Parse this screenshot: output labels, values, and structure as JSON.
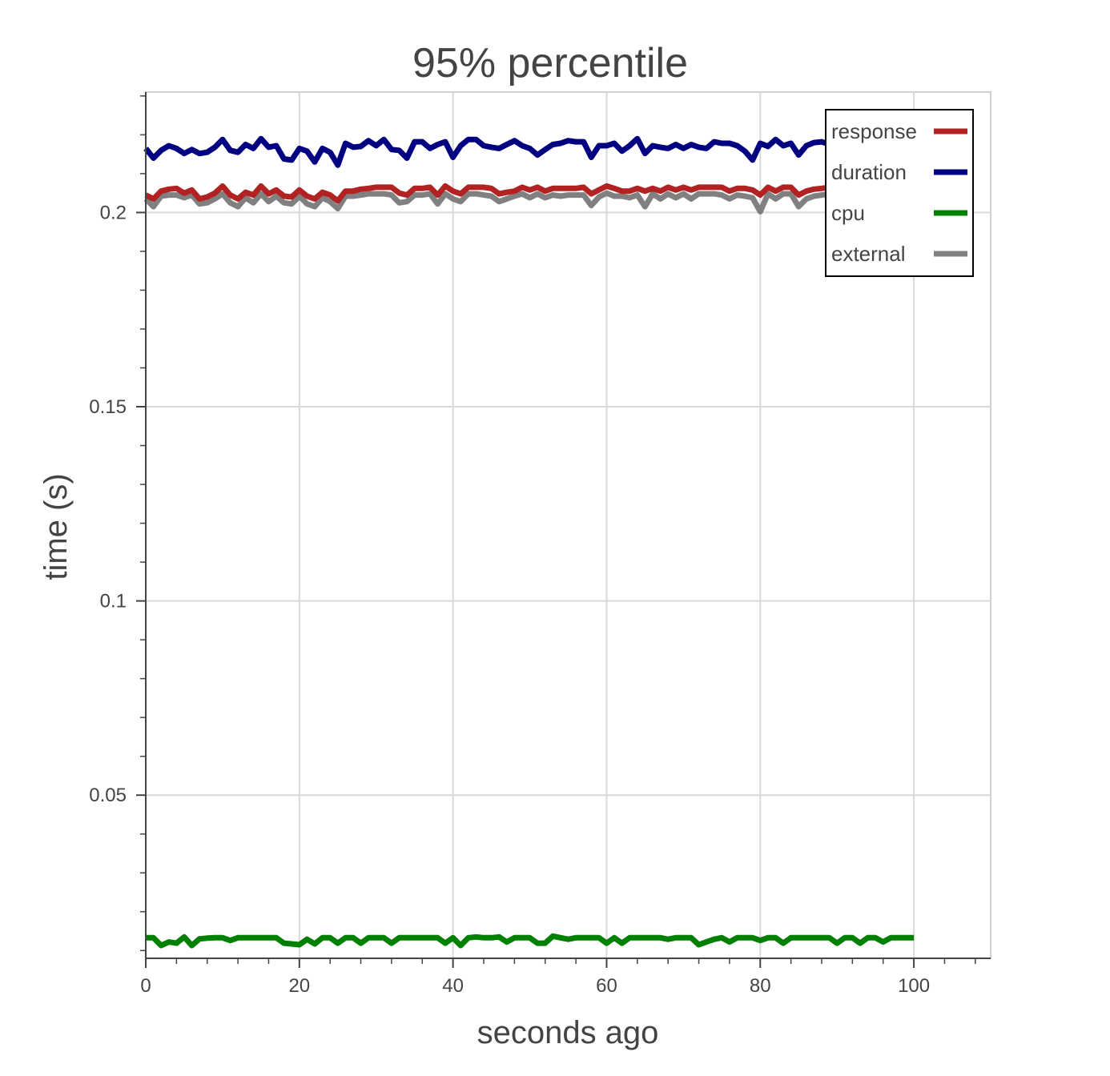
{
  "chart_data": {
    "type": "line",
    "title": "95% percentile",
    "xlabel": "seconds ago",
    "ylabel": "time (s)",
    "xlim": [
      0,
      110
    ],
    "ylim": [
      0.008,
      0.231
    ],
    "xticks": [
      0,
      20,
      40,
      60,
      80,
      100
    ],
    "xtick_labels": [
      "0",
      "20",
      "40",
      "60",
      "80",
      "100"
    ],
    "yticks": [
      0.05,
      0.1,
      0.15,
      0.2
    ],
    "ytick_labels": [
      "0.05",
      "0.1",
      "0.15",
      "0.2"
    ],
    "grid": true,
    "legend_position": "top-right",
    "series": [
      {
        "name": "response",
        "color": "#b22222",
        "x": [
          0,
          1,
          2,
          3,
          4,
          5,
          6,
          7,
          8,
          9,
          10,
          11,
          12,
          13,
          14,
          15,
          16,
          17,
          18,
          19,
          20,
          21,
          22,
          23,
          24,
          25,
          26,
          27,
          28,
          29,
          30,
          31,
          32,
          33,
          34,
          35,
          36,
          37,
          38,
          39,
          40,
          41,
          42,
          43,
          44,
          45,
          46,
          47,
          48,
          49,
          50,
          51,
          52,
          53,
          54,
          55,
          56,
          57,
          58,
          59,
          60,
          61,
          62,
          63,
          64,
          65,
          66,
          67,
          68,
          69,
          70,
          71,
          72,
          73,
          74,
          75,
          76,
          77,
          78,
          79,
          80,
          81,
          82,
          83,
          84,
          85,
          86,
          87,
          88,
          89,
          90,
          91,
          92,
          93,
          94,
          95,
          96,
          97,
          98,
          99,
          100
        ],
        "values": [
          0.2045,
          0.2035,
          0.2055,
          0.206,
          0.2062,
          0.205,
          0.2058,
          0.2035,
          0.204,
          0.205,
          0.2068,
          0.2045,
          0.2035,
          0.2052,
          0.2045,
          0.2068,
          0.2048,
          0.2058,
          0.2042,
          0.204,
          0.2058,
          0.2042,
          0.2035,
          0.2052,
          0.2045,
          0.203,
          0.2055,
          0.2055,
          0.206,
          0.2062,
          0.2065,
          0.2065,
          0.2065,
          0.205,
          0.2045,
          0.2062,
          0.2062,
          0.2065,
          0.2045,
          0.2068,
          0.2055,
          0.2048,
          0.2065,
          0.2065,
          0.2065,
          0.2062,
          0.2048,
          0.2052,
          0.2055,
          0.2065,
          0.2058,
          0.2065,
          0.2055,
          0.2062,
          0.2062,
          0.2062,
          0.2062,
          0.2065,
          0.2048,
          0.2058,
          0.2068,
          0.2062,
          0.2055,
          0.2055,
          0.2062,
          0.2055,
          0.2062,
          0.2055,
          0.2065,
          0.2058,
          0.2065,
          0.2058,
          0.2065,
          0.2065,
          0.2065,
          0.2065,
          0.2055,
          0.2062,
          0.2062,
          0.2058,
          0.2045,
          0.2065,
          0.2055,
          0.2065,
          0.2065,
          0.2045,
          0.2055,
          0.206,
          0.2062,
          0.2065,
          0.2058,
          0.2065,
          0.2062,
          0.2065,
          0.2058,
          0.2062,
          0.2058,
          0.2062,
          0.2065,
          0.2062,
          0.2058
        ]
      },
      {
        "name": "duration",
        "color": "#000080",
        "x": [
          0,
          1,
          2,
          3,
          4,
          5,
          6,
          7,
          8,
          9,
          10,
          11,
          12,
          13,
          14,
          15,
          16,
          17,
          18,
          19,
          20,
          21,
          22,
          23,
          24,
          25,
          26,
          27,
          28,
          29,
          30,
          31,
          32,
          33,
          34,
          35,
          36,
          37,
          38,
          39,
          40,
          41,
          42,
          43,
          44,
          45,
          46,
          47,
          48,
          49,
          50,
          51,
          52,
          53,
          54,
          55,
          56,
          57,
          58,
          59,
          60,
          61,
          62,
          63,
          64,
          65,
          66,
          67,
          68,
          69,
          70,
          71,
          72,
          73,
          74,
          75,
          76,
          77,
          78,
          79,
          80,
          81,
          82,
          83,
          84,
          85,
          86,
          87,
          88,
          89,
          90,
          91,
          92,
          93,
          94,
          95,
          96,
          97,
          98,
          99,
          100
        ],
        "values": [
          0.2165,
          0.214,
          0.216,
          0.2172,
          0.2165,
          0.2152,
          0.2162,
          0.2152,
          0.2155,
          0.2168,
          0.2188,
          0.216,
          0.2155,
          0.2175,
          0.2165,
          0.219,
          0.2168,
          0.2172,
          0.2138,
          0.2135,
          0.2165,
          0.2158,
          0.213,
          0.2165,
          0.2155,
          0.2122,
          0.2178,
          0.2168,
          0.217,
          0.2185,
          0.2172,
          0.2188,
          0.2162,
          0.216,
          0.214,
          0.2182,
          0.2182,
          0.2165,
          0.2175,
          0.2182,
          0.2142,
          0.2172,
          0.2188,
          0.2188,
          0.2172,
          0.2168,
          0.2165,
          0.2175,
          0.2185,
          0.2172,
          0.2165,
          0.2148,
          0.2162,
          0.2175,
          0.2178,
          0.2185,
          0.2182,
          0.2182,
          0.2142,
          0.2172,
          0.2172,
          0.2178,
          0.2158,
          0.2172,
          0.219,
          0.2152,
          0.2172,
          0.2168,
          0.2165,
          0.2175,
          0.2165,
          0.2175,
          0.2168,
          0.2165,
          0.2182,
          0.2178,
          0.2178,
          0.2172,
          0.2158,
          0.2135,
          0.2178,
          0.217,
          0.2188,
          0.2172,
          0.2178,
          0.2148,
          0.2172,
          0.218,
          0.2182,
          0.2175,
          0.2182,
          0.2182,
          0.2175,
          0.2182,
          0.2182,
          0.2178,
          0.2182,
          0.2178,
          0.2182,
          0.2178,
          0.218
        ]
      },
      {
        "name": "cpu",
        "color": "#008000",
        "x": [
          0,
          1,
          2,
          3,
          4,
          5,
          6,
          7,
          8,
          9,
          10,
          11,
          12,
          13,
          14,
          15,
          16,
          17,
          18,
          19,
          20,
          21,
          22,
          23,
          24,
          25,
          26,
          27,
          28,
          29,
          30,
          31,
          32,
          33,
          34,
          35,
          36,
          37,
          38,
          39,
          40,
          41,
          42,
          43,
          44,
          45,
          46,
          47,
          48,
          49,
          50,
          51,
          52,
          53,
          54,
          55,
          56,
          57,
          58,
          59,
          60,
          61,
          62,
          63,
          64,
          65,
          66,
          67,
          68,
          69,
          70,
          71,
          72,
          73,
          74,
          75,
          76,
          77,
          78,
          79,
          80,
          81,
          82,
          83,
          84,
          85,
          86,
          87,
          88,
          89,
          90,
          91,
          92,
          93,
          94,
          95,
          96,
          97,
          98,
          99,
          100
        ],
        "values": [
          0.0133,
          0.0133,
          0.0113,
          0.0122,
          0.0119,
          0.0135,
          0.0113,
          0.013,
          0.0132,
          0.0133,
          0.0133,
          0.0126,
          0.0133,
          0.0133,
          0.0133,
          0.0133,
          0.0133,
          0.0133,
          0.0119,
          0.0117,
          0.0115,
          0.0129,
          0.0117,
          0.0133,
          0.0133,
          0.0119,
          0.0133,
          0.0133,
          0.0119,
          0.0133,
          0.0133,
          0.0133,
          0.0119,
          0.0133,
          0.0133,
          0.0133,
          0.0133,
          0.0133,
          0.0133,
          0.0119,
          0.0133,
          0.0113,
          0.0133,
          0.0135,
          0.0133,
          0.0133,
          0.0135,
          0.0122,
          0.0133,
          0.0133,
          0.0133,
          0.0119,
          0.0119,
          0.0137,
          0.0133,
          0.0129,
          0.0133,
          0.0133,
          0.0133,
          0.0133,
          0.0119,
          0.0133,
          0.0119,
          0.0133,
          0.0133,
          0.0133,
          0.0133,
          0.0133,
          0.0129,
          0.0133,
          0.0133,
          0.0133,
          0.0115,
          0.0122,
          0.0129,
          0.0133,
          0.0122,
          0.0133,
          0.0133,
          0.0133,
          0.0126,
          0.0133,
          0.0133,
          0.0119,
          0.0133,
          0.0133,
          0.0133,
          0.0133,
          0.0133,
          0.0133,
          0.0119,
          0.0133,
          0.0133,
          0.0119,
          0.0133,
          0.0133,
          0.0122,
          0.0133,
          0.0133,
          0.0133,
          0.0133
        ]
      },
      {
        "name": "external",
        "color": "#808080",
        "x": [
          0,
          1,
          2,
          3,
          4,
          5,
          6,
          7,
          8,
          9,
          10,
          11,
          12,
          13,
          14,
          15,
          16,
          17,
          18,
          19,
          20,
          21,
          22,
          23,
          24,
          25,
          26,
          27,
          28,
          29,
          30,
          31,
          32,
          33,
          34,
          35,
          36,
          37,
          38,
          39,
          40,
          41,
          42,
          43,
          44,
          45,
          46,
          47,
          48,
          49,
          50,
          51,
          52,
          53,
          54,
          55,
          56,
          57,
          58,
          59,
          60,
          61,
          62,
          63,
          64,
          65,
          66,
          67,
          68,
          69,
          70,
          71,
          72,
          73,
          74,
          75,
          76,
          77,
          78,
          79,
          80,
          81,
          82,
          83,
          84,
          85,
          86,
          87,
          88,
          89,
          90,
          91,
          92,
          93,
          94,
          95,
          96,
          97,
          98,
          99,
          100
        ],
        "values": [
          0.2035,
          0.2015,
          0.2042,
          0.2045,
          0.2045,
          0.2038,
          0.2045,
          0.2022,
          0.2025,
          0.2035,
          0.2048,
          0.2025,
          0.2015,
          0.2038,
          0.2025,
          0.2048,
          0.2028,
          0.2042,
          0.2025,
          0.2022,
          0.2042,
          0.2022,
          0.2015,
          0.2038,
          0.2028,
          0.201,
          0.2042,
          0.2042,
          0.2045,
          0.2048,
          0.2048,
          0.2048,
          0.2045,
          0.2025,
          0.2028,
          0.2045,
          0.2045,
          0.2048,
          0.2022,
          0.2048,
          0.2035,
          0.2028,
          0.2048,
          0.2048,
          0.2045,
          0.2042,
          0.2028,
          0.2035,
          0.2042,
          0.2048,
          0.2038,
          0.2048,
          0.2038,
          0.2045,
          0.2042,
          0.2045,
          0.2045,
          0.2045,
          0.2018,
          0.204,
          0.205,
          0.2042,
          0.2042,
          0.2038,
          0.2045,
          0.2015,
          0.2048,
          0.2035,
          0.2048,
          0.2038,
          0.2048,
          0.2035,
          0.2048,
          0.2048,
          0.2048,
          0.2045,
          0.2035,
          0.2045,
          0.2042,
          0.2038,
          0.2002,
          0.2048,
          0.2035,
          0.2048,
          0.2048,
          0.2015,
          0.2035,
          0.2042,
          0.2045,
          0.2048,
          0.2038,
          0.2048,
          0.2042,
          0.2048,
          0.2038,
          0.2045,
          0.2038,
          0.2045,
          0.2048,
          0.2045,
          0.2042
        ]
      }
    ]
  }
}
